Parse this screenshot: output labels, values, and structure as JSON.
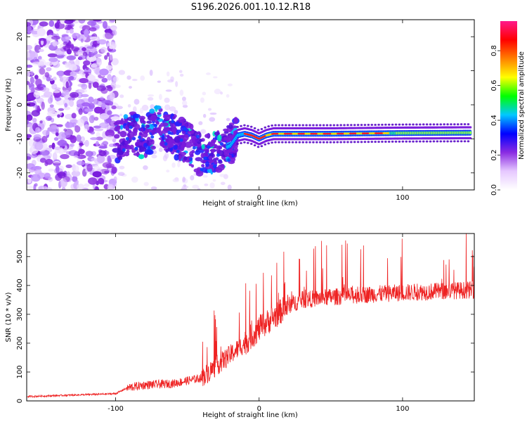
{
  "title": "S196.2026.001.10.12.R18",
  "chart_data": [
    {
      "type": "heatmap",
      "name": "spectrogram",
      "xlabel": "Height of straight line (km)",
      "ylabel": "Frequency (Hz)",
      "xlim": [
        -162,
        150
      ],
      "ylim": [
        -25,
        25
      ],
      "x_ticks": [
        -100,
        0,
        100
      ],
      "y_ticks": [
        -20,
        -10,
        0,
        10,
        20
      ],
      "colorbar": {
        "label": "Normalized spectral amplitude",
        "range": [
          0,
          0.97
        ],
        "ticks": [
          0.0,
          0.2,
          0.4,
          0.6,
          0.8
        ],
        "tick_labels": [
          "0.0",
          "0.2",
          "0.4",
          "0.6",
          "0.8"
        ],
        "colors": [
          "#ffffff",
          "#e6c8ff",
          "#8a2be2",
          "#0000ff",
          "#00c8ff",
          "#00ff00",
          "#ffff00",
          "#ff8000",
          "#ff0000",
          "#ff1a8c"
        ]
      },
      "carrier_track": [
        {
          "x": -100,
          "y": -11
        },
        {
          "x": -90,
          "y": -8
        },
        {
          "x": -80,
          "y": -10
        },
        {
          "x": -70,
          "y": -6
        },
        {
          "x": -60,
          "y": -9
        },
        {
          "x": -50,
          "y": -11
        },
        {
          "x": -40,
          "y": -15
        },
        {
          "x": -30,
          "y": -14
        },
        {
          "x": -20,
          "y": -12
        },
        {
          "x": -15,
          "y": -9
        },
        {
          "x": -10,
          "y": -8.5
        },
        {
          "x": -5,
          "y": -9
        },
        {
          "x": 0,
          "y": -10
        },
        {
          "x": 5,
          "y": -9
        },
        {
          "x": 10,
          "y": -8.5
        },
        {
          "x": 50,
          "y": -8.5
        },
        {
          "x": 100,
          "y": -8.3
        },
        {
          "x": 150,
          "y": -8.2
        }
      ]
    },
    {
      "type": "line",
      "name": "snr",
      "xlabel": "Height of straight line (km)",
      "ylabel": "SNR (10 * v/v)",
      "xlim": [
        -162,
        150
      ],
      "ylim": [
        0,
        580
      ],
      "x_ticks": [
        -100,
        0,
        100
      ],
      "y_ticks": [
        0,
        100,
        200,
        300,
        400,
        500
      ],
      "series": [
        {
          "name": "SNR",
          "color": "#ee2222",
          "envelope": [
            {
              "x": -162,
              "y": 15
            },
            {
              "x": -100,
              "y": 25
            },
            {
              "x": -92,
              "y": 45
            },
            {
              "x": -80,
              "y": 55
            },
            {
              "x": -60,
              "y": 60
            },
            {
              "x": -40,
              "y": 80
            },
            {
              "x": -30,
              "y": 120
            },
            {
              "x": -20,
              "y": 160
            },
            {
              "x": -10,
              "y": 200
            },
            {
              "x": 0,
              "y": 250
            },
            {
              "x": 10,
              "y": 290
            },
            {
              "x": 20,
              "y": 330
            },
            {
              "x": 30,
              "y": 350
            },
            {
              "x": 50,
              "y": 360
            },
            {
              "x": 80,
              "y": 370
            },
            {
              "x": 100,
              "y": 375
            },
            {
              "x": 150,
              "y": 385
            }
          ]
        }
      ]
    }
  ]
}
